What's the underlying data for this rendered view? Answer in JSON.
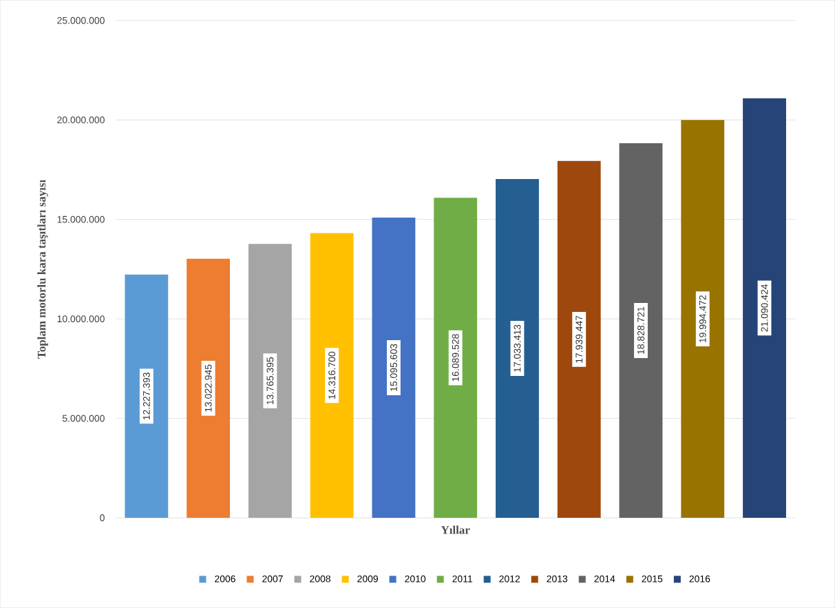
{
  "chart_data": {
    "type": "bar",
    "xlabel": "Yıllar",
    "ylabel": "Toplam motorlu kara taşıtları sayısı",
    "categories": [
      null,
      null,
      null,
      null,
      null,
      null,
      null,
      null,
      null,
      null,
      null
    ],
    "series": [
      {
        "name": "2006",
        "color": "#5b9bd5",
        "values": [
          12227393,
          null,
          null,
          null,
          null,
          null,
          null,
          null,
          null,
          null,
          null
        ],
        "value_labels": [
          "12.227.393",
          null,
          null,
          null,
          null,
          null,
          null,
          null,
          null,
          null,
          null
        ]
      },
      {
        "name": "2007",
        "color": "#ed7d31",
        "values": [
          null,
          13022945,
          null,
          null,
          null,
          null,
          null,
          null,
          null,
          null,
          null
        ],
        "value_labels": [
          null,
          "13.022.945",
          null,
          null,
          null,
          null,
          null,
          null,
          null,
          null,
          null
        ]
      },
      {
        "name": "2008",
        "color": "#a5a5a5",
        "values": [
          null,
          null,
          13765395,
          null,
          null,
          null,
          null,
          null,
          null,
          null,
          null
        ],
        "value_labels": [
          null,
          null,
          "13.765.395",
          null,
          null,
          null,
          null,
          null,
          null,
          null,
          null
        ]
      },
      {
        "name": "2009",
        "color": "#ffc000",
        "values": [
          null,
          null,
          null,
          14316700,
          null,
          null,
          null,
          null,
          null,
          null,
          null
        ],
        "value_labels": [
          null,
          null,
          null,
          "14.316.700",
          null,
          null,
          null,
          null,
          null,
          null,
          null
        ]
      },
      {
        "name": "2010",
        "color": "#4472c4",
        "values": [
          null,
          null,
          null,
          null,
          15095603,
          null,
          null,
          null,
          null,
          null,
          null
        ],
        "value_labels": [
          null,
          null,
          null,
          null,
          "15.095.603",
          null,
          null,
          null,
          null,
          null,
          null
        ]
      },
      {
        "name": "2011",
        "color": "#70ad47",
        "values": [
          null,
          null,
          null,
          null,
          null,
          16089528,
          null,
          null,
          null,
          null,
          null
        ],
        "value_labels": [
          null,
          null,
          null,
          null,
          null,
          "16.089.528",
          null,
          null,
          null,
          null,
          null
        ]
      },
      {
        "name": "2012",
        "color": "#255e91",
        "values": [
          null,
          null,
          null,
          null,
          null,
          null,
          17033413,
          null,
          null,
          null,
          null
        ],
        "value_labels": [
          null,
          null,
          null,
          null,
          null,
          null,
          "17.033.413",
          null,
          null,
          null,
          null
        ]
      },
      {
        "name": "2013",
        "color": "#9e480e",
        "values": [
          null,
          null,
          null,
          null,
          null,
          null,
          null,
          17939447,
          null,
          null,
          null
        ],
        "value_labels": [
          null,
          null,
          null,
          null,
          null,
          null,
          null,
          "17.939.447",
          null,
          null,
          null
        ]
      },
      {
        "name": "2014",
        "color": "#636363",
        "values": [
          null,
          null,
          null,
          null,
          null,
          null,
          null,
          null,
          18828721,
          null,
          null
        ],
        "value_labels": [
          null,
          null,
          null,
          null,
          null,
          null,
          null,
          null,
          "18.828.721",
          null,
          null
        ]
      },
      {
        "name": "2015",
        "color": "#997300",
        "values": [
          null,
          null,
          null,
          null,
          null,
          null,
          null,
          null,
          null,
          19994472,
          null
        ],
        "value_labels": [
          null,
          null,
          null,
          null,
          null,
          null,
          null,
          null,
          null,
          "19.994.472",
          null
        ]
      },
      {
        "name": "2016",
        "color": "#264478",
        "values": [
          null,
          null,
          null,
          null,
          null,
          null,
          null,
          null,
          null,
          null,
          21090424
        ],
        "value_labels": [
          null,
          null,
          null,
          null,
          null,
          null,
          null,
          null,
          null,
          null,
          "21.090.424"
        ]
      }
    ],
    "ylim": [
      0,
      25000000
    ],
    "yticks": [
      0,
      {
        "value": 5000000,
        "label": "5.000.000"
      },
      {
        "value": 10000000,
        "label": "10.000.000"
      },
      {
        "value": 15000000,
        "label": "15.000.000"
      },
      {
        "value": 20000000,
        "label": "20.000.000"
      },
      {
        "value": 25000000,
        "label": "25.000.000"
      }
    ],
    "grid": "y",
    "legend": "bottom"
  }
}
